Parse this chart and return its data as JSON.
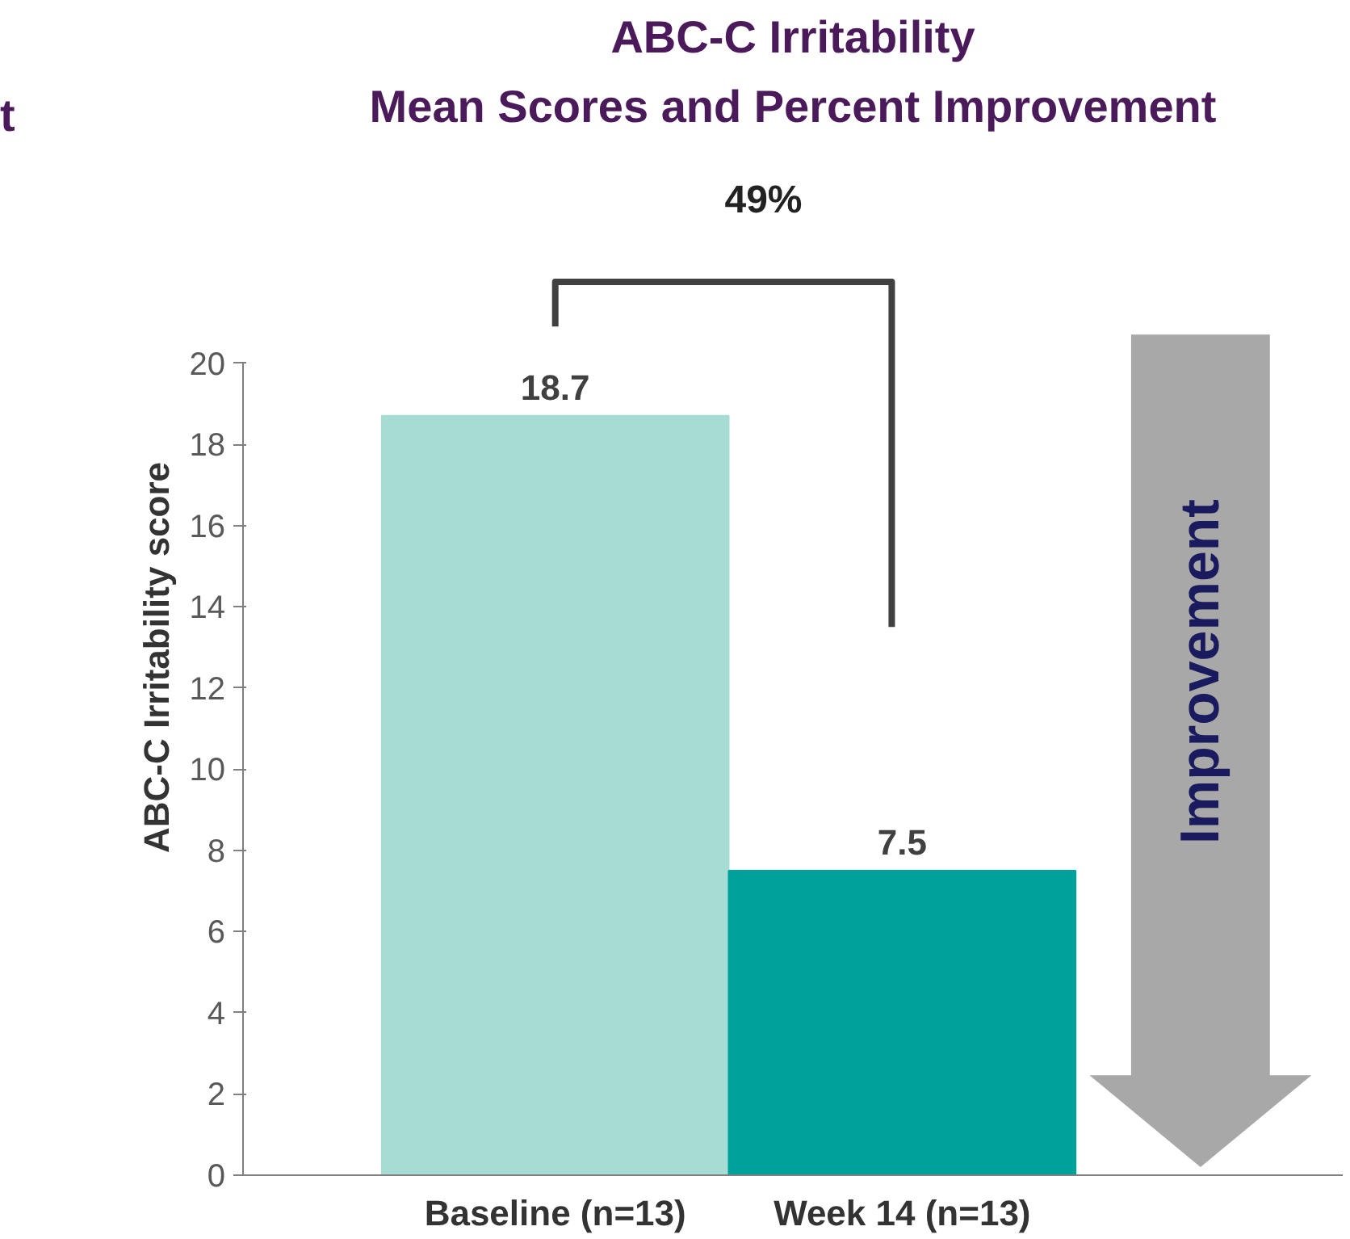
{
  "chart_data": {
    "type": "bar",
    "title": "ABC-C Irritability",
    "subtitle": "Mean Scores and Percent Improvement",
    "ylabel": "ABC-C Irritability score",
    "categories": [
      "Baseline (n=13)",
      "Week 14 (n=13)"
    ],
    "values": [
      18.7,
      7.5
    ],
    "colors": [
      "#a6dcd4",
      "#00a19a"
    ],
    "ylim": [
      0,
      20
    ],
    "yticks": [
      0,
      2,
      4,
      6,
      8,
      10,
      12,
      14,
      16,
      18,
      20
    ],
    "grid": false,
    "data_labels": true,
    "annotations": [
      "t",
      "49%",
      "Improvement"
    ]
  }
}
